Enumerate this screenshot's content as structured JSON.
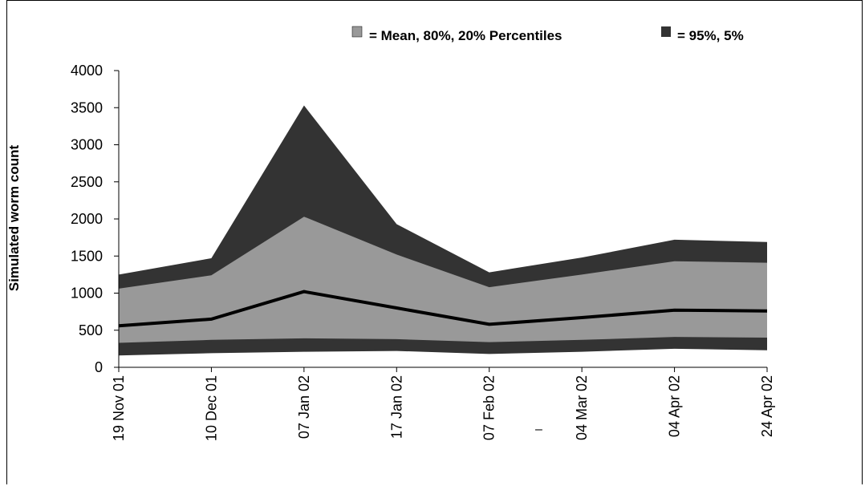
{
  "chart_data": {
    "type": "area",
    "x": [
      "19 Nov 01",
      "10 Dec 01",
      "07 Jan 02",
      "17 Jan 02",
      "07 Feb 02",
      "04 Mar 02",
      "04 Apr 02",
      "24 Apr 02"
    ],
    "series": [
      {
        "name": "95%",
        "values": [
          1250,
          1470,
          3530,
          1930,
          1280,
          1480,
          1720,
          1690
        ]
      },
      {
        "name": "80%",
        "values": [
          1060,
          1240,
          2030,
          1520,
          1080,
          1250,
          1430,
          1410
        ]
      },
      {
        "name": "Mean",
        "values": [
          560,
          650,
          1020,
          800,
          580,
          670,
          770,
          760
        ]
      },
      {
        "name": "20%",
        "values": [
          330,
          370,
          390,
          380,
          340,
          370,
          410,
          400
        ]
      },
      {
        "name": "5%",
        "values": [
          160,
          190,
          210,
          220,
          180,
          210,
          250,
          230
        ]
      }
    ],
    "legend": [
      {
        "label": "=  Mean, 80%, 20% Percentiles",
        "color": "#999999"
      },
      {
        "label": "=  95%, 5%",
        "color": "#333333"
      }
    ],
    "ylabel": "Simulated worm count",
    "yticks": [
      "0",
      "500",
      "1000",
      "1500",
      "2000",
      "2500",
      "3000",
      "3500",
      "4000"
    ],
    "ylim": [
      0,
      4000
    ],
    "grid": false,
    "colors": {
      "outer_band": "#333333",
      "inner_band": "#999999",
      "mean_line": "#000000"
    },
    "annotation": "–"
  }
}
